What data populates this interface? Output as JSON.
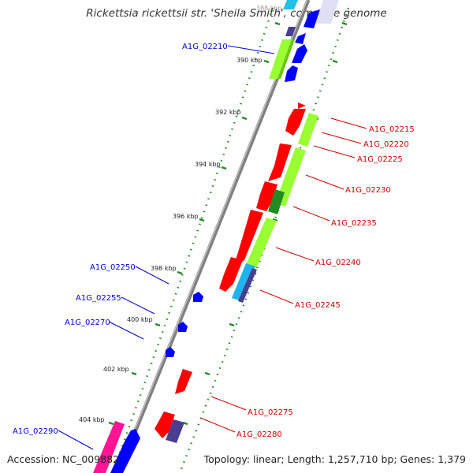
{
  "title": "Rickettsia rickettsii str. 'Sheila Smith', complete genome",
  "footer": {
    "accession": "Accession: NC_009882",
    "summary": "Topology: linear; Length: 1,257,710 bp; Genes: 1,379"
  },
  "colors": {
    "backbone": "#808080",
    "tick": "#228b22",
    "cds": "#ff0000",
    "cds_minus": "#0000ff",
    "function_lime": "#99ff33",
    "function_green": "#228b22",
    "function_pink": "#ff1493",
    "function_cyan": "#1eb4f0",
    "function_slate": "#4a3f8f",
    "function_lavender": "#ccccee",
    "label_minus": "#0000cc",
    "label_plus": "#cc0000"
  },
  "scale": {
    "ticks": [
      "388 kbp",
      "390 kbp",
      "392 kbp",
      "394 kbp",
      "396 kbp",
      "398 kbp",
      "400 kbp",
      "402 kbp",
      "404 kbp"
    ]
  },
  "features": {
    "minus_labels": [
      "A1G_02210",
      "A1G_02250",
      "A1G_02255",
      "A1G_02270",
      "A1G_02290"
    ],
    "plus_labels": [
      "A1G_02215",
      "A1G_02220",
      "A1G_02225",
      "A1G_02230",
      "A1G_02235",
      "A1G_02240",
      "A1G_02245",
      "A1G_02275",
      "A1G_02280"
    ]
  }
}
